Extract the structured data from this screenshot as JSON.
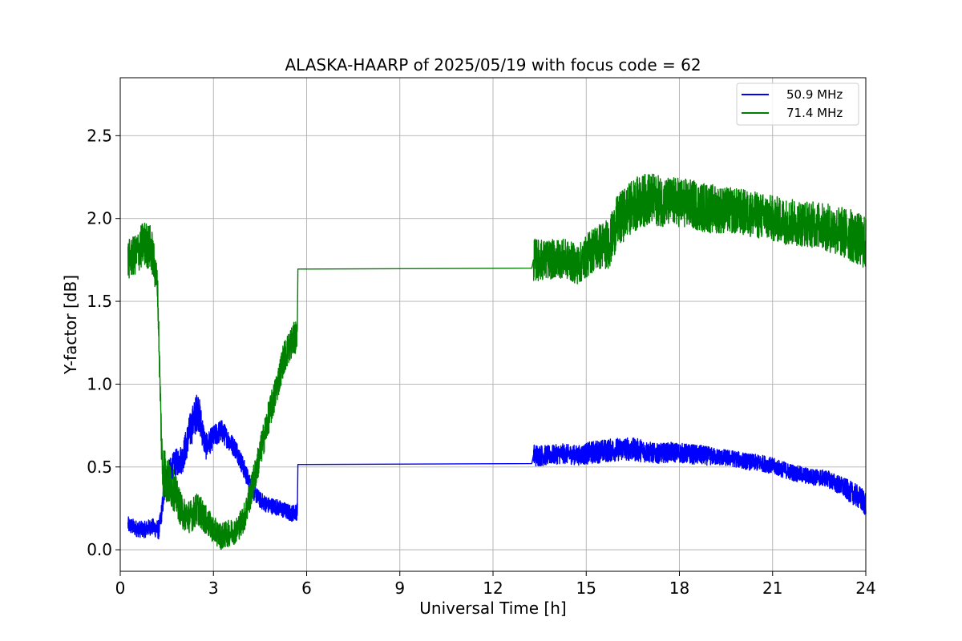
{
  "chart_data": {
    "type": "line",
    "title": "ALASKA-HAARP of 2025/05/19 with focus code = 62",
    "xlabel": "Universal Time [h]",
    "ylabel": "Y-factor [dB]",
    "xlim": [
      0,
      24
    ],
    "ylim": [
      -0.13,
      2.85
    ],
    "xticks": [
      0,
      3,
      6,
      9,
      12,
      15,
      18,
      21,
      24
    ],
    "xtick_labels": [
      "0",
      "3",
      "6",
      "9",
      "12",
      "15",
      "18",
      "21",
      "24"
    ],
    "yticks": [
      0.0,
      0.5,
      1.0,
      1.5,
      2.0,
      2.5
    ],
    "ytick_labels": [
      "0.0",
      "0.5",
      "1.0",
      "1.5",
      "2.0",
      "2.5"
    ],
    "grid": true,
    "legend_position": "top-right",
    "series": [
      {
        "name": "50.9 MHz",
        "color": "#0000ff",
        "x": [
          0.25,
          0.5,
          0.75,
          1.0,
          1.25,
          1.5,
          1.75,
          2.0,
          2.25,
          2.5,
          2.75,
          3.0,
          3.25,
          3.5,
          3.75,
          4.0,
          4.25,
          4.5,
          4.75,
          5.0,
          5.25,
          5.5,
          5.7,
          5.72,
          13.25,
          13.3,
          13.75,
          14.25,
          14.75,
          15.25,
          15.75,
          16.25,
          16.75,
          17.25,
          17.75,
          18.25,
          18.75,
          19.25,
          19.75,
          20.25,
          20.75,
          21.25,
          21.75,
          22.25,
          22.75,
          23.25,
          23.75,
          24.0
        ],
        "y": [
          0.15,
          0.13,
          0.12,
          0.14,
          0.12,
          0.45,
          0.52,
          0.55,
          0.72,
          0.85,
          0.62,
          0.68,
          0.72,
          0.66,
          0.6,
          0.48,
          0.36,
          0.3,
          0.27,
          0.26,
          0.24,
          0.22,
          0.23,
          0.515,
          0.52,
          0.57,
          0.57,
          0.58,
          0.57,
          0.59,
          0.6,
          0.61,
          0.6,
          0.58,
          0.59,
          0.58,
          0.57,
          0.56,
          0.55,
          0.53,
          0.52,
          0.49,
          0.46,
          0.44,
          0.43,
          0.38,
          0.32,
          0.28
        ],
        "noise": [
          0.05,
          0.05,
          0.05,
          0.05,
          0.06,
          0.07,
          0.08,
          0.09,
          0.11,
          0.12,
          0.08,
          0.07,
          0.07,
          0.06,
          0.06,
          0.06,
          0.05,
          0.05,
          0.05,
          0.05,
          0.05,
          0.05,
          0.05,
          0.0,
          0.0,
          0.07,
          0.06,
          0.06,
          0.06,
          0.07,
          0.07,
          0.07,
          0.07,
          0.06,
          0.06,
          0.06,
          0.06,
          0.05,
          0.05,
          0.05,
          0.05,
          0.05,
          0.05,
          0.05,
          0.05,
          0.06,
          0.07,
          0.08
        ]
      },
      {
        "name": "71.4 MHz",
        "color": "#008000",
        "x": [
          0.25,
          0.5,
          0.75,
          1.0,
          1.2,
          1.28,
          1.35,
          1.5,
          1.75,
          2.0,
          2.25,
          2.5,
          2.75,
          3.0,
          3.25,
          3.5,
          3.75,
          4.0,
          4.25,
          4.5,
          4.75,
          5.0,
          5.25,
          5.5,
          5.7,
          5.72,
          13.25,
          13.3,
          13.75,
          14.25,
          14.75,
          15.25,
          15.75,
          16.0,
          16.5,
          17.0,
          17.5,
          18.0,
          18.5,
          19.0,
          19.5,
          20.0,
          20.5,
          21.0,
          21.5,
          22.0,
          22.5,
          23.0,
          23.5,
          24.0
        ],
        "y": [
          1.75,
          1.78,
          1.85,
          1.82,
          1.6,
          1.0,
          0.5,
          0.42,
          0.35,
          0.22,
          0.2,
          0.25,
          0.18,
          0.12,
          0.08,
          0.1,
          0.12,
          0.2,
          0.38,
          0.58,
          0.78,
          0.95,
          1.15,
          1.25,
          1.3,
          1.695,
          1.7,
          1.75,
          1.75,
          1.76,
          1.72,
          1.82,
          1.85,
          1.98,
          2.08,
          2.12,
          2.1,
          2.1,
          2.08,
          2.06,
          2.05,
          2.04,
          2.02,
          2.0,
          1.98,
          1.97,
          1.96,
          1.93,
          1.9,
          1.85
        ],
        "noise": [
          0.12,
          0.12,
          0.14,
          0.14,
          0.1,
          0.1,
          0.18,
          0.15,
          0.12,
          0.1,
          0.1,
          0.1,
          0.09,
          0.08,
          0.08,
          0.08,
          0.08,
          0.09,
          0.1,
          0.1,
          0.1,
          0.1,
          0.1,
          0.1,
          0.1,
          0.0,
          0.0,
          0.13,
          0.12,
          0.12,
          0.12,
          0.14,
          0.15,
          0.16,
          0.16,
          0.16,
          0.15,
          0.15,
          0.15,
          0.15,
          0.14,
          0.14,
          0.14,
          0.14,
          0.14,
          0.14,
          0.14,
          0.15,
          0.16,
          0.16
        ]
      }
    ]
  }
}
